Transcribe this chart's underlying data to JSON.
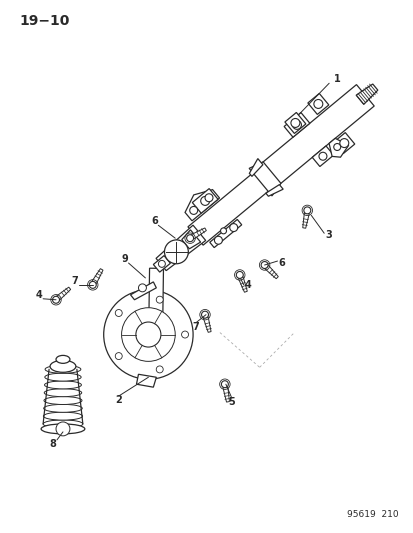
{
  "title": "19−10",
  "footer": "95619  210",
  "background_color": "#ffffff",
  "line_color": "#2a2a2a",
  "text_color": "#2a2a2a",
  "fig_width": 4.14,
  "fig_height": 5.33,
  "dpi": 100
}
